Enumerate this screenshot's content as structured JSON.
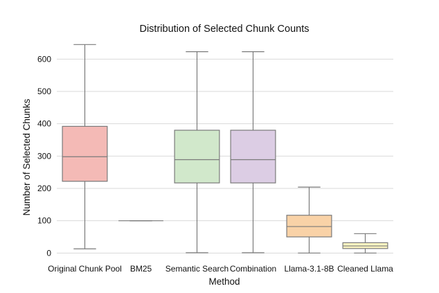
{
  "chart_data": {
    "type": "box",
    "title": "Distribution of Selected Chunk Counts",
    "xlabel": "Method",
    "ylabel": "Number of Selected Chunks",
    "ylim": [
      -25,
      665
    ],
    "yticks": [
      0,
      100,
      200,
      300,
      400,
      500,
      600
    ],
    "grid": "horizontal",
    "categories": [
      "Original Chunk Pool",
      "BM25",
      "Semantic Search",
      "Combination",
      "Llama-3.1-8B",
      "Cleaned Llama"
    ],
    "boxes": [
      {
        "category": "Original Chunk Pool",
        "min": 13,
        "q1": 222,
        "median": 298,
        "q3": 392,
        "max": 645,
        "color": "#f4bab6"
      },
      {
        "category": "BM25",
        "min": 100,
        "q1": 100,
        "median": 100,
        "q3": 100,
        "max": 100,
        "color": "#c6d9ee"
      },
      {
        "category": "Semantic Search",
        "min": 1,
        "q1": 217,
        "median": 289,
        "q3": 380,
        "max": 623,
        "color": "#d1e8cb"
      },
      {
        "category": "Combination",
        "min": 1,
        "q1": 217,
        "median": 289,
        "q3": 380,
        "max": 623,
        "color": "#dccde4"
      },
      {
        "category": "Llama-3.1-8B",
        "min": 0,
        "q1": 50,
        "median": 82,
        "q3": 117,
        "max": 204,
        "color": "#f9d2a7"
      },
      {
        "category": "Cleaned Llama",
        "min": 0,
        "q1": 14,
        "median": 22,
        "q3": 32,
        "max": 60,
        "color": "#fbf5c2"
      }
    ]
  }
}
